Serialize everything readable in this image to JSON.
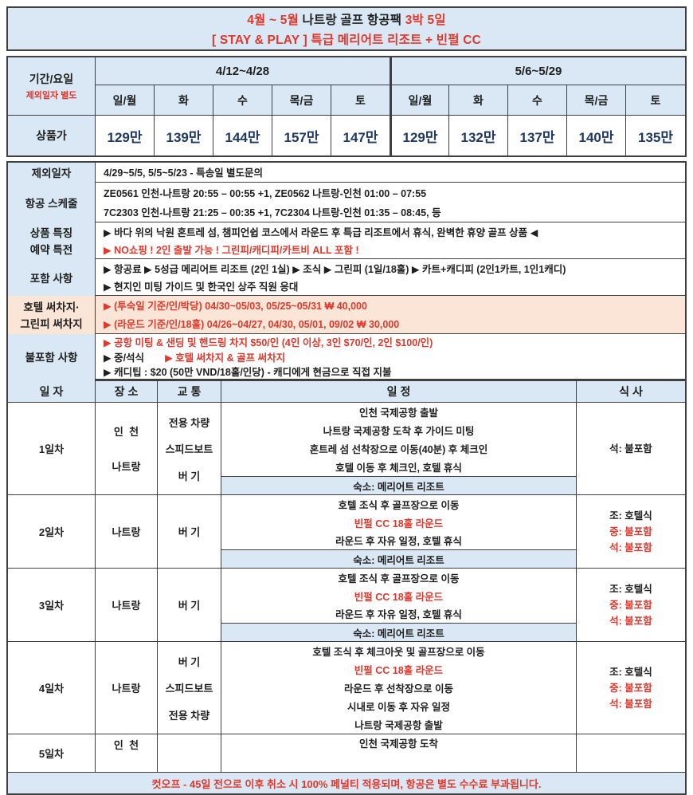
{
  "colors": {
    "accent_red": "#e0382c",
    "price_navy": "#1f3864",
    "header_blue": "#d9e8f4",
    "surcharge_peach": "#fbe5d6",
    "border": "#3f3f3f"
  },
  "title": {
    "l1a": "4월 ~ 5월",
    "l1b": " 나트랑 골프 항공팩 ",
    "l1c": "3박 5일",
    "l2": "[ STAY & PLAY ] 특급 메리어트 리조트 + 빈펄 CC"
  },
  "price_table": {
    "corner": {
      "label": "기간/요일",
      "note": "제외일자 별도"
    },
    "price_row_label": "상품가",
    "periods": [
      {
        "label": "4/12~4/28",
        "days": [
          "일/월",
          "화",
          "수",
          "목/금",
          "토"
        ],
        "prices": [
          "129만",
          "139만",
          "144만",
          "157만",
          "147만"
        ]
      },
      {
        "label": "5/6~5/29",
        "days": [
          "일/월",
          "화",
          "수",
          "목/금",
          "토"
        ],
        "prices": [
          "129만",
          "132만",
          "137만",
          "140만",
          "135만"
        ]
      }
    ]
  },
  "info": {
    "exclusion": {
      "label": "제외일자",
      "text": "4/29~5/5, 5/5~5/23 - 특송일 별도문의"
    },
    "flight": {
      "label": "항공 스케줄",
      "line1": "ZE0561 인천-나트랑 20:55 – 00:55 +1, ZE0562 나트랑-인천 01:00 – 07:55",
      "line2": "7C2303 인천-나트랑 21:25 – 00:35 +1, 7C2304 나트랑-인천 01:35 – 08:45, 등"
    },
    "feature": {
      "label1": "상품 특징",
      "label2": "예약 특전",
      "line1": "▶ 바다 위의 낙원 혼트레 섬, 챔피언쉽 코스에서 라운드 후 특급 리조트에서 휴식, 완벽한 휴양 골프 상품 ◀",
      "line2": "▶ NO쇼핑 ! 2인 출발 가능 ! 그린피/캐디피/카트비 ALL 포함 !"
    },
    "included": {
      "label": "포함  사항",
      "line1": "▶ 항공료 ▶ 5성급 메리어트 리조트 (2인 1실) ▶ 조식  ▶ 그린피 (1일/18홀) ▶ 카트+캐디피 (2인1카트, 1인1캐디)",
      "line2": "▶ 현지인 미팅 가이드 및 한국인 상주 직원 응대"
    },
    "surcharge": {
      "label1": "호텔 써차지·",
      "label2": "그린피 써차지",
      "line1": "▶ (투숙일 기준/인/박당) 04/30~05/03, 05/25~05/31 ₩ 40,000",
      "line2": "▶ (라운드 기준/인/18홀) 04/26~04/27, 04/30, 05/01, 09/02  ₩ 30,000"
    },
    "excluded": {
      "label": "불포함 사항",
      "line1": "▶ 공항 미팅 & 샌딩 및 핸드링 차지 $50/인 (4인 이상, 3인 $70/인, 2인 $100/인)",
      "line2a": "▶ 중/석식",
      "line2b": "▶ 호텔 써차지 & 골프 써차지",
      "line3": "▶ 캐디팁 : $20 (50만 VND/18홀/인당) - 캐디에게 현금으로 직접 지불"
    }
  },
  "itinerary": {
    "headers": [
      "일 자",
      "장 소",
      "교 통",
      "일 정",
      "식 사"
    ],
    "days": [
      {
        "day": "1일차",
        "places": [
          "인  천",
          "나트랑"
        ],
        "transport": [
          "전용 차량",
          "스피드보트",
          "버 기"
        ],
        "schedule": [
          {
            "text": "인천 국제공항 출발"
          },
          {
            "text": "나트랑 국제공항 도착 후 가이드 미팅"
          },
          {
            "text": "혼트레 섬 선착장으로 이동(40분) 후 체크인"
          },
          {
            "text": "호텔 이동 후 체크인, 호텔 휴식"
          }
        ],
        "stay": "숙소: 메리어트 리조트",
        "meals": [
          {
            "text": "석: 불포함"
          }
        ]
      },
      {
        "day": "2일차",
        "places": [
          "나트랑"
        ],
        "transport": [
          "버 기"
        ],
        "schedule": [
          {
            "text": "호텔 조식 후 골프장으로 이동"
          },
          {
            "text": "빈펄 CC 18홀 라운드"
          },
          {
            "text": "라운드 후 자유 일정, 호텔 휴식"
          }
        ],
        "stay": "숙소: 메리어트 리조트",
        "meals": [
          {
            "text": "조: 호텔식"
          },
          {
            "text": "중: 불포함"
          },
          {
            "text": "석: 불포함"
          }
        ]
      },
      {
        "day": "3일차",
        "places": [
          "나트랑"
        ],
        "transport": [
          "버 기"
        ],
        "schedule": [
          {
            "text": "호텔 조식 후 골프장으로 이동"
          },
          {
            "text": "빈펄 CC 18홀 라운드"
          },
          {
            "text": "라운드 후 자유 일정, 호텔 휴식"
          }
        ],
        "stay": "숙소: 메리어트 리조트",
        "meals": [
          {
            "text": "조: 호텔식"
          },
          {
            "text": "중: 불포함"
          },
          {
            "text": "석: 불포함"
          }
        ]
      },
      {
        "day": "4일차",
        "places": [
          "나트랑"
        ],
        "transport": [
          "버 기",
          "스피드보트",
          "전용 차량"
        ],
        "schedule": [
          {
            "text": "호텔 조식 후 체크아웃 및 골프장으로 이동"
          },
          {
            "text": "빈펄 CC 18홀 라운드"
          },
          {
            "text": "라운드 후 선착장으로 이동"
          },
          {
            "text": "시내로 이동 후 자유 일정"
          },
          {
            "text": "나트랑 국제공항 출발"
          }
        ],
        "meals": [
          {
            "text": "조: 호텔식"
          },
          {
            "text": "중: 불포함"
          },
          {
            "text": "석: 불포함"
          }
        ]
      },
      {
        "day": "5일차",
        "places": [
          "인  천"
        ],
        "schedule": [
          {
            "text": "인천 국제공항 도착"
          }
        ]
      }
    ]
  },
  "footer_note": "컷오프 - 45일 전으로 이후 취소 시 100% 페널티 적용되며, 항공은 별도 수수료 부과됩니다."
}
